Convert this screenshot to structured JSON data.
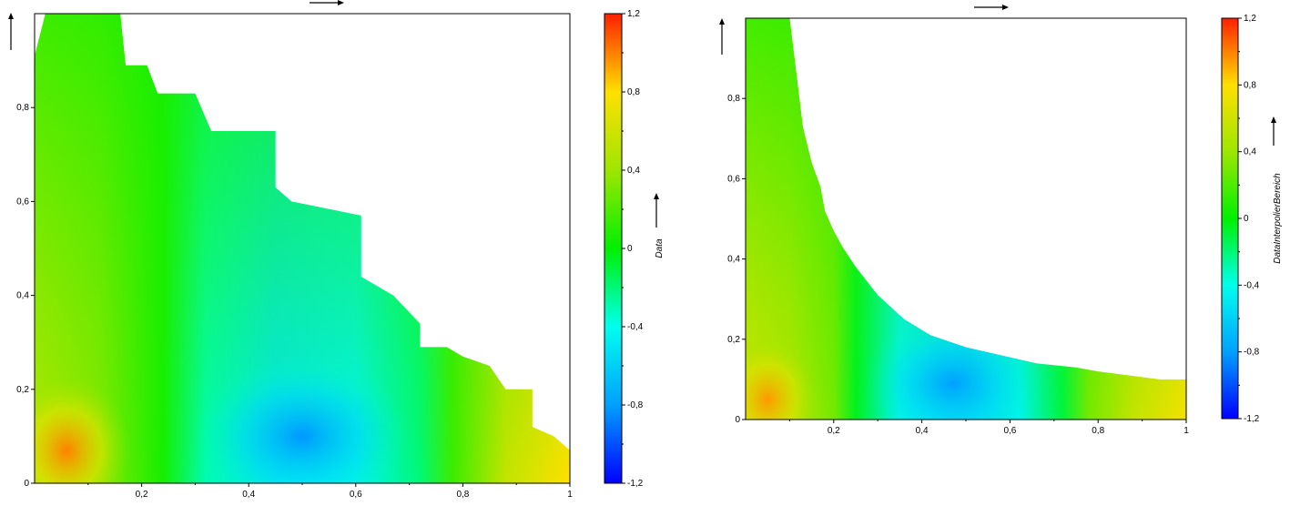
{
  "palette": {
    "stops": [
      {
        "v": -1.2,
        "color": "#0000ff"
      },
      {
        "v": -0.8,
        "color": "#00a0ff"
      },
      {
        "v": -0.4,
        "color": "#00ffee"
      },
      {
        "v": 0.0,
        "color": "#00f000"
      },
      {
        "v": 0.4,
        "color": "#9ee600"
      },
      {
        "v": 0.8,
        "color": "#ffe000"
      },
      {
        "v": 1.2,
        "color": "#ff2000"
      }
    ],
    "axis_color": "#000000"
  },
  "chart_data": [
    {
      "type": "heatmap",
      "title": "",
      "xlabel": "",
      "ylabel": "",
      "xlim": [
        0,
        1
      ],
      "ylim": [
        0,
        1
      ],
      "x_ticks": [
        {
          "v": 0.2,
          "label": "0,2"
        },
        {
          "v": 0.4,
          "label": "0,4"
        },
        {
          "v": 0.6,
          "label": "0,6"
        },
        {
          "v": 0.8,
          "label": "0,8"
        },
        {
          "v": 1.0,
          "label": "1"
        }
      ],
      "y_ticks": [
        {
          "v": 0.0,
          "label": "0"
        },
        {
          "v": 0.2,
          "label": "0,2"
        },
        {
          "v": 0.4,
          "label": "0,4"
        },
        {
          "v": 0.6,
          "label": "0,6"
        },
        {
          "v": 0.8,
          "label": "0,8"
        }
      ],
      "colorbar": {
        "label": "Data",
        "range": [
          -1.2,
          1.2
        ],
        "ticks": [
          {
            "v": 1.2,
            "label": "1,2"
          },
          {
            "v": 0.8,
            "label": "0,8"
          },
          {
            "v": 0.4,
            "label": "0,4"
          },
          {
            "v": 0.0,
            "label": "0"
          },
          {
            "v": -0.4,
            "label": "-0,4"
          },
          {
            "v": -0.8,
            "label": "-0,8"
          },
          {
            "v": -1.2,
            "label": "-1,2"
          }
        ]
      },
      "boundary": [
        [
          0.0,
          0.0
        ],
        [
          0.0,
          0.91
        ],
        [
          0.02,
          1.0
        ],
        [
          0.16,
          1.0
        ],
        [
          0.17,
          0.89
        ],
        [
          0.21,
          0.89
        ],
        [
          0.23,
          0.83
        ],
        [
          0.3,
          0.83
        ],
        [
          0.33,
          0.75
        ],
        [
          0.45,
          0.75
        ],
        [
          0.45,
          0.63
        ],
        [
          0.48,
          0.6
        ],
        [
          0.61,
          0.57
        ],
        [
          0.61,
          0.44
        ],
        [
          0.67,
          0.4
        ],
        [
          0.72,
          0.34
        ],
        [
          0.72,
          0.29
        ],
        [
          0.77,
          0.29
        ],
        [
          0.8,
          0.27
        ],
        [
          0.85,
          0.25
        ],
        [
          0.88,
          0.2
        ],
        [
          0.93,
          0.2
        ],
        [
          0.93,
          0.12
        ],
        [
          0.97,
          0.1
        ],
        [
          1.0,
          0.07
        ],
        [
          1.0,
          0.0
        ]
      ],
      "hotspots": [
        {
          "x": 0.5,
          "y": 0.1,
          "value": -0.82
        },
        {
          "x": 0.06,
          "y": 0.07,
          "value": 1.0
        }
      ]
    },
    {
      "type": "heatmap",
      "title": "",
      "xlabel": "",
      "ylabel": "",
      "xlim": [
        0,
        1
      ],
      "ylim": [
        0,
        1
      ],
      "x_ticks": [
        {
          "v": 0.2,
          "label": "0,2"
        },
        {
          "v": 0.4,
          "label": "0,4"
        },
        {
          "v": 0.6,
          "label": "0,6"
        },
        {
          "v": 0.8,
          "label": "0,8"
        },
        {
          "v": 1.0,
          "label": "1"
        }
      ],
      "y_ticks": [
        {
          "v": 0.0,
          "label": "0"
        },
        {
          "v": 0.2,
          "label": "0,2"
        },
        {
          "v": 0.4,
          "label": "0,4"
        },
        {
          "v": 0.6,
          "label": "0,6"
        },
        {
          "v": 0.8,
          "label": "0,8"
        }
      ],
      "colorbar": {
        "label": "DataInterpolierBereich",
        "range": [
          -1.2,
          1.2
        ],
        "ticks": [
          {
            "v": 1.2,
            "label": "1,2"
          },
          {
            "v": 0.8,
            "label": "0,8"
          },
          {
            "v": 0.4,
            "label": "0,4"
          },
          {
            "v": 0.0,
            "label": "0"
          },
          {
            "v": -0.4,
            "label": "-0,4"
          },
          {
            "v": -0.8,
            "label": "-0,8"
          },
          {
            "v": -1.2,
            "label": "-1,2"
          }
        ]
      },
      "boundary": [
        [
          0.0,
          0.0
        ],
        [
          0.0,
          1.0
        ],
        [
          0.1,
          1.0
        ],
        [
          0.12,
          0.82
        ],
        [
          0.13,
          0.73
        ],
        [
          0.15,
          0.64
        ],
        [
          0.17,
          0.58
        ],
        [
          0.18,
          0.52
        ],
        [
          0.2,
          0.47
        ],
        [
          0.22,
          0.43
        ],
        [
          0.25,
          0.38
        ],
        [
          0.3,
          0.31
        ],
        [
          0.36,
          0.25
        ],
        [
          0.42,
          0.21
        ],
        [
          0.5,
          0.18
        ],
        [
          0.58,
          0.16
        ],
        [
          0.66,
          0.14
        ],
        [
          0.75,
          0.13
        ],
        [
          0.8,
          0.12
        ],
        [
          0.87,
          0.11
        ],
        [
          0.94,
          0.1
        ],
        [
          1.0,
          0.1
        ],
        [
          1.0,
          0.0
        ]
      ],
      "hotspots": [
        {
          "x": 0.47,
          "y": 0.09,
          "value": -0.8
        },
        {
          "x": 0.05,
          "y": 0.05,
          "value": 0.95
        }
      ]
    }
  ]
}
